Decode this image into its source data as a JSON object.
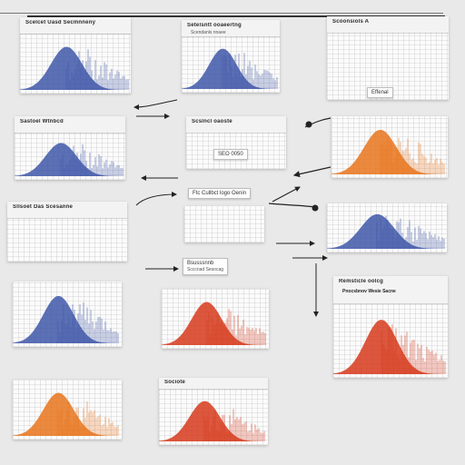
{
  "colors": {
    "background": "#e9e9ea",
    "blue": "#3f57a8",
    "orange": "#e8741c",
    "red": "#d63a1c",
    "arrow": "#222222"
  },
  "panels": [
    {
      "id": "p1",
      "title": "Scelcet Uasd Secmnneny",
      "sub": "",
      "scheme": "blue"
    },
    {
      "id": "p2",
      "title": "Setelsntt ooaeertng",
      "sub": "Scendanls nnaee",
      "scheme": "blue"
    },
    {
      "id": "p3",
      "title": "Scoonsiols A",
      "sub": "Effenal",
      "scheme": "blue"
    },
    {
      "id": "p4",
      "title": "Sastoel Wtnbcd",
      "sub": "",
      "scheme": "blue"
    },
    {
      "id": "p5",
      "title": "Scslncl oaoste",
      "sub": "SEO 0050",
      "scheme": "none"
    },
    {
      "id": "p6",
      "title": "",
      "sub": "",
      "scheme": "orange"
    },
    {
      "id": "p7",
      "title": "Sllsoet Das Scesanne",
      "sub": "",
      "scheme": "none"
    },
    {
      "id": "p8",
      "title": "",
      "sub": "",
      "scheme": "blue"
    },
    {
      "id": "p9",
      "title": "",
      "sub": "",
      "scheme": "blue"
    },
    {
      "id": "p10",
      "title": "",
      "sub": "",
      "scheme": "red"
    },
    {
      "id": "p11",
      "title": "Remsticle oolcg",
      "sub": "Pnocsbnov Wesie Sacne",
      "scheme": "red"
    },
    {
      "id": "p12",
      "title": "",
      "sub": "",
      "scheme": "orange"
    },
    {
      "id": "p13",
      "title": "Sociote",
      "sub": "",
      "scheme": "red"
    }
  ],
  "notes": [
    {
      "id": "n1",
      "line1": "Ftc Cullbct logo Oenin",
      "line2": ""
    },
    {
      "id": "n2",
      "line1": "Bsusssnnb",
      "line2": "Scccnad Sesocag"
    }
  ]
}
